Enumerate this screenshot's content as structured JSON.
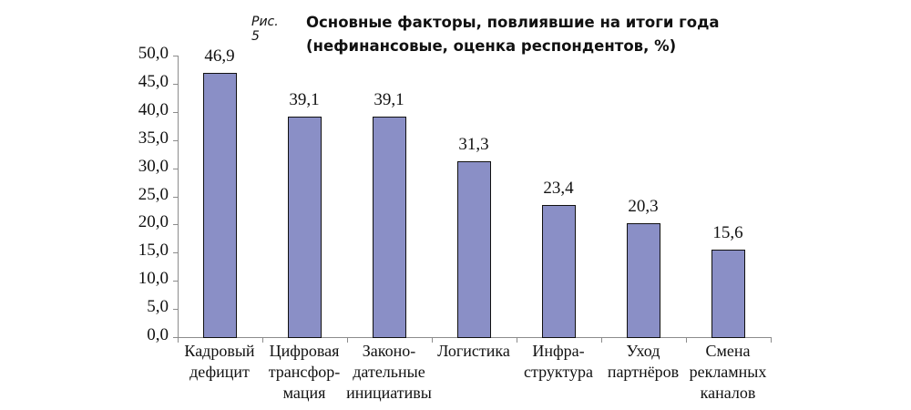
{
  "figure": {
    "label": "Рис. 5",
    "title_line1": "Основные факторы, повлиявшие на итоги года",
    "title_line2": "(нефинансовые, оценка респондентов, %)"
  },
  "colors": {
    "bar_fill": "#8a8fc6",
    "bar_border": "#111111",
    "axis": "#8c8c8c"
  },
  "chart_data": {
    "type": "bar",
    "title": "Основные факторы, повлиявшие на итоги года (нефинансовые, оценка респондентов, %)",
    "xlabel": "",
    "ylabel": "",
    "ylim": [
      0,
      50
    ],
    "yticks": [
      "0,0",
      "5,0",
      "10,0",
      "15,0",
      "20,0",
      "25,0",
      "30,0",
      "35,0",
      "40,0",
      "45,0",
      "50,0"
    ],
    "grid": false,
    "legend": null,
    "categories": [
      "Кадровый дефицит",
      "Цифровая трансфор-мация",
      "Законо-дательные инициативы",
      "Логистика",
      "Инфра-структура",
      "Уход партнёров",
      "Смена рекламных каналов"
    ],
    "category_labels_display": [
      "Кадровый\nдефицит",
      "Цифровая\nтрансфор-\nмация",
      "Законо-\nдательные\nинициативы",
      "Логистика",
      "Инфра-\nструктура",
      "Уход\nпартнёров",
      "Смена\nрекламных\nканалов"
    ],
    "values": [
      46.9,
      39.1,
      39.1,
      31.3,
      23.4,
      20.3,
      15.6
    ],
    "value_labels": [
      "46,9",
      "39,1",
      "39,1",
      "31,3",
      "23,4",
      "20,3",
      "15,6"
    ]
  }
}
